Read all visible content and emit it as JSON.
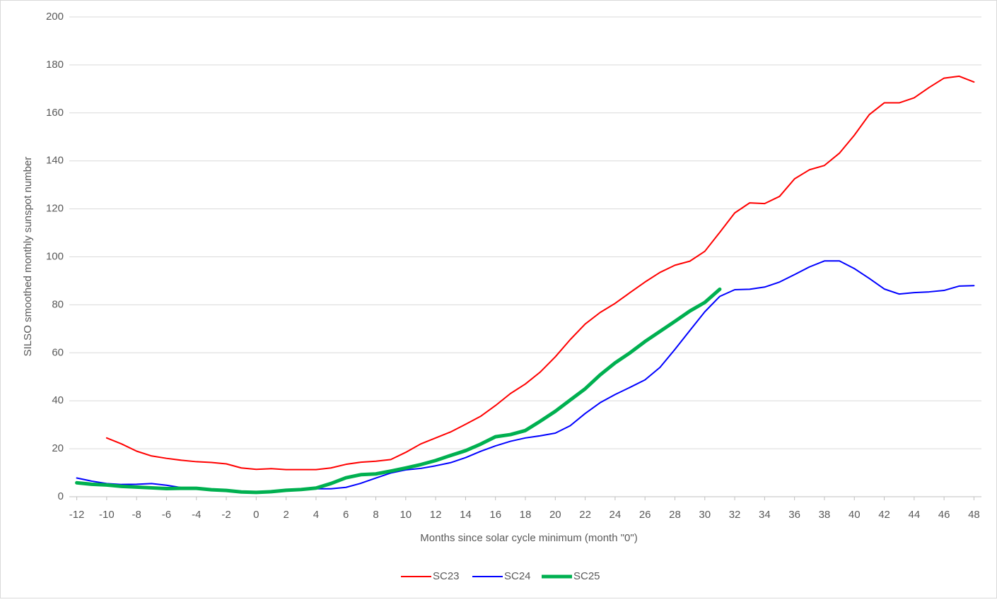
{
  "chart_data": {
    "type": "line",
    "xlabel": "Months since solar cycle minimum (month \"0\")",
    "ylabel": "SILSO smoothed monthly sunspot number",
    "x": [
      -12,
      -11,
      -10,
      -9,
      -8,
      -7,
      -6,
      -5,
      -4,
      -3,
      -2,
      -1,
      0,
      1,
      2,
      3,
      4,
      5,
      6,
      7,
      8,
      9,
      10,
      11,
      12,
      13,
      14,
      15,
      16,
      17,
      18,
      19,
      20,
      21,
      22,
      23,
      24,
      25,
      26,
      27,
      28,
      29,
      30,
      31,
      32,
      33,
      34,
      35,
      36,
      37,
      38,
      39,
      40,
      41,
      42,
      43,
      44,
      45,
      46,
      47,
      48
    ],
    "xlim": [
      -12.5,
      48.5
    ],
    "xticks": [
      -12,
      -10,
      -8,
      -6,
      -4,
      -2,
      0,
      2,
      4,
      6,
      8,
      10,
      12,
      14,
      16,
      18,
      20,
      22,
      24,
      26,
      28,
      30,
      32,
      34,
      36,
      38,
      40,
      42,
      44,
      46,
      48
    ],
    "ylim": [
      0,
      200
    ],
    "yticks": [
      0,
      20,
      40,
      60,
      80,
      100,
      120,
      140,
      160,
      180,
      200
    ],
    "grid": true,
    "legend": "bottom",
    "series": [
      {
        "name": "SC23",
        "color": "#ff0000",
        "width": 2,
        "values": [
          null,
          null,
          24.5,
          22,
          19,
          17,
          16,
          15.2,
          14.6,
          14.3,
          13.7,
          12,
          11.4,
          11.7,
          11.3,
          11.3,
          11.3,
          12,
          13.5,
          14.4,
          14.8,
          15.5,
          18.5,
          22,
          24.5,
          27,
          30.2,
          33.5,
          38,
          43,
          47,
          52,
          58.3,
          65.5,
          72,
          76.8,
          80.6,
          85.1,
          89.5,
          93.5,
          96.5,
          98.2,
          102.3,
          110.2,
          118.3,
          122.5,
          122.2,
          125.2,
          132.5,
          136.3,
          138.1,
          143.2,
          150.7,
          159.3,
          164.2,
          164.2,
          166.3,
          170.6,
          174.5,
          175.3,
          172.9
        ]
      },
      {
        "name": "SC24",
        "color": "#0000ff",
        "width": 2,
        "values": [
          7.8,
          6.5,
          5.5,
          5.1,
          5.2,
          5.5,
          4.8,
          3.8,
          3.7,
          3.0,
          2.6,
          2.0,
          1.8,
          2.2,
          2.5,
          2.8,
          3.3,
          3.3,
          3.9,
          5.6,
          7.8,
          9.9,
          11.2,
          11.8,
          12.9,
          14.2,
          16.3,
          18.9,
          21.2,
          23.1,
          24.5,
          25.4,
          26.5,
          29.6,
          34.7,
          39.2,
          42.6,
          45.6,
          48.7,
          53.9,
          61.4,
          69.3,
          77.1,
          83.5,
          86.3,
          86.5,
          87.4,
          89.5,
          92.6,
          95.8,
          98.3,
          98.3,
          95.1,
          91.0,
          86.6,
          84.5,
          85.1,
          85.4,
          86.0,
          87.8,
          88.0
        ]
      },
      {
        "name": "SC25",
        "color": "#00b050",
        "width": 5,
        "values": [
          5.8,
          5.2,
          4.9,
          4.3,
          4.0,
          3.7,
          3.4,
          3.5,
          3.5,
          2.9,
          2.6,
          2.0,
          1.8,
          2.1,
          2.7,
          3.0,
          3.6,
          5.5,
          7.9,
          9.2,
          9.5,
          10.7,
          12.0,
          13.4,
          15.1,
          17.2,
          19.2,
          21.9,
          25.0,
          25.9,
          27.6,
          31.5,
          35.6,
          40.3,
          45.0,
          50.8,
          55.8,
          60.0,
          64.7,
          68.9,
          73.1,
          77.4,
          81.0,
          86.5,
          null,
          null,
          null,
          null,
          null,
          null,
          null,
          null,
          null,
          null,
          null,
          null,
          null,
          null,
          null,
          null,
          null
        ]
      }
    ]
  }
}
